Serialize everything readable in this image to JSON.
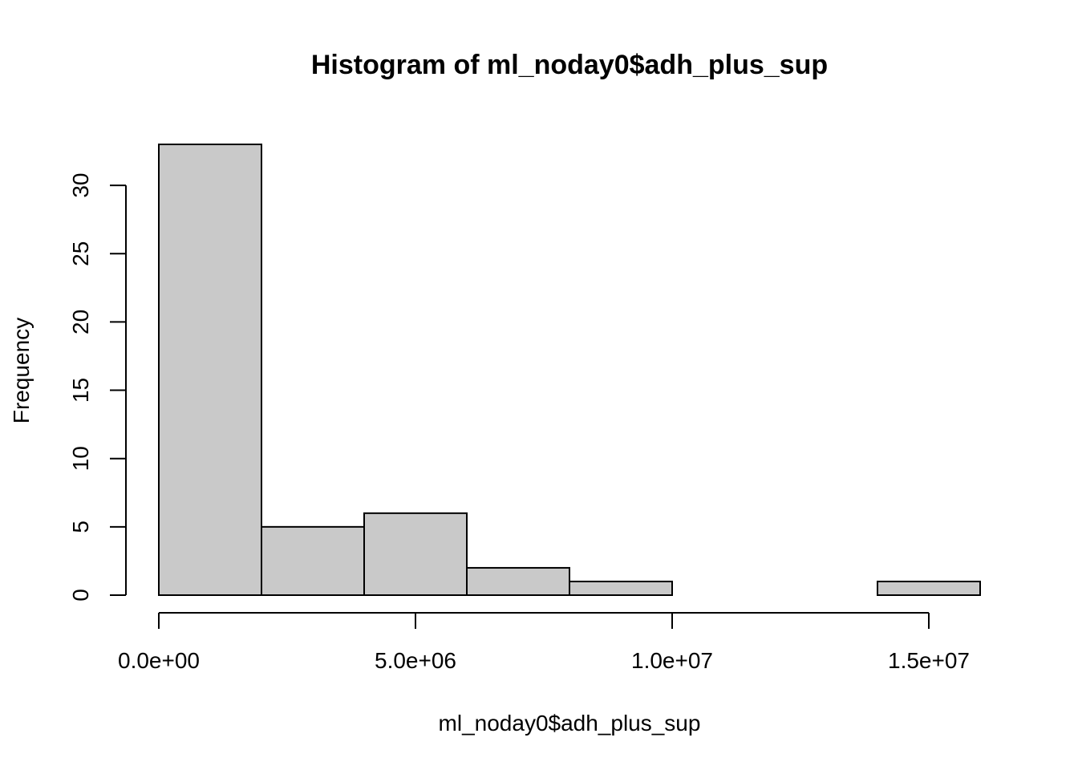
{
  "chart_data": {
    "type": "bar",
    "title": "Histogram of ml_noday0$adh_plus_sup",
    "xlabel": "ml_noday0$adh_plus_sup",
    "ylabel": "Frequency",
    "bins": [
      {
        "start": 0,
        "end": 2000000,
        "count": 33
      },
      {
        "start": 2000000,
        "end": 4000000,
        "count": 5
      },
      {
        "start": 4000000,
        "end": 6000000,
        "count": 6
      },
      {
        "start": 6000000,
        "end": 8000000,
        "count": 2
      },
      {
        "start": 8000000,
        "end": 10000000,
        "count": 1
      },
      {
        "start": 10000000,
        "end": 12000000,
        "count": 0
      },
      {
        "start": 12000000,
        "end": 14000000,
        "count": 0
      },
      {
        "start": 14000000,
        "end": 16000000,
        "count": 1
      }
    ],
    "x_ticks": [
      {
        "value": 0,
        "label": "0.0e+00"
      },
      {
        "value": 5000000,
        "label": "5.0e+06"
      },
      {
        "value": 10000000,
        "label": "1.0e+07"
      },
      {
        "value": 15000000,
        "label": "1.5e+07"
      }
    ],
    "y_ticks": [
      {
        "value": 0,
        "label": "0"
      },
      {
        "value": 5,
        "label": "5"
      },
      {
        "value": 10,
        "label": "10"
      },
      {
        "value": 15,
        "label": "15"
      },
      {
        "value": 20,
        "label": "20"
      },
      {
        "value": 25,
        "label": "25"
      },
      {
        "value": 30,
        "label": "30"
      }
    ],
    "xlim": [
      0,
      16000000
    ],
    "ylim": [
      0,
      33
    ],
    "grid": false,
    "colors": {
      "bar_fill": "#c9c9c9",
      "bar_stroke": "#000000"
    }
  }
}
